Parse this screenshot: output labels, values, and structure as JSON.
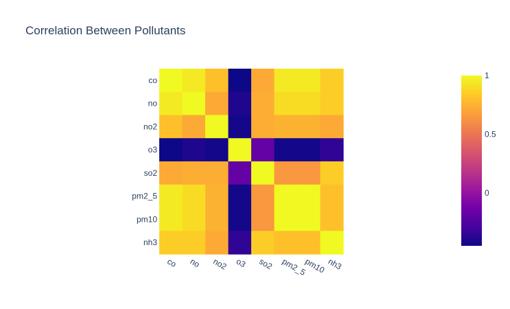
{
  "chart_data": {
    "type": "heatmap",
    "title": "Correlation Between Pollutants",
    "xlabel": "",
    "ylabel": "",
    "x": [
      "co",
      "no",
      "no2",
      "o3",
      "so2",
      "pm2_5",
      "pm10",
      "nh3"
    ],
    "y": [
      "co",
      "no",
      "no2",
      "o3",
      "so2",
      "pm2_5",
      "pm10",
      "nh3"
    ],
    "z": [
      [
        1.0,
        0.95,
        0.8,
        -0.45,
        0.72,
        0.95,
        0.95,
        0.85
      ],
      [
        0.95,
        1.0,
        0.72,
        -0.4,
        0.73,
        0.9,
        0.9,
        0.85
      ],
      [
        0.8,
        0.72,
        1.0,
        -0.43,
        0.73,
        0.75,
        0.75,
        0.72
      ],
      [
        -0.45,
        -0.4,
        -0.43,
        1.0,
        -0.18,
        -0.43,
        -0.43,
        -0.35
      ],
      [
        0.72,
        0.73,
        0.73,
        -0.18,
        1.0,
        0.65,
        0.65,
        0.85
      ],
      [
        0.95,
        0.9,
        0.75,
        -0.43,
        0.65,
        1.0,
        1.0,
        0.8
      ],
      [
        0.95,
        0.9,
        0.75,
        -0.43,
        0.65,
        1.0,
        1.0,
        0.8
      ],
      [
        0.85,
        0.85,
        0.72,
        -0.35,
        0.85,
        0.8,
        0.8,
        1.0
      ]
    ],
    "zrange": [
      -0.45,
      1.0
    ],
    "colorscale": "plasma",
    "colorbar": {
      "ticks": [
        0,
        0.5,
        1
      ],
      "tick_labels": [
        "0",
        "0.5",
        "1"
      ],
      "placement": "right"
    },
    "x_tick_angle_deg": 30,
    "grid": false
  }
}
